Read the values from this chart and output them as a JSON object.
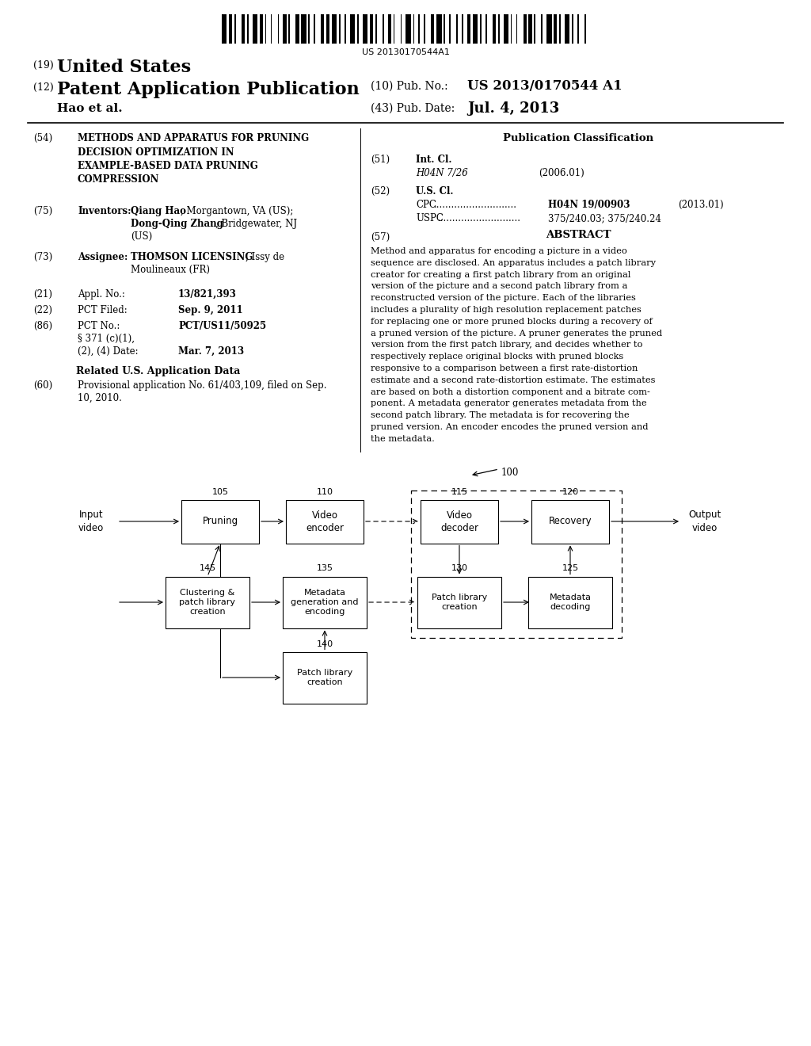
{
  "bg_color": "#ffffff",
  "barcode_text": "US 20130170544A1",
  "title_19": "(19)",
  "title_us": "United States",
  "title_12": "(12)",
  "title_pat": "Patent Application Publication",
  "title_10": "(10) Pub. No.:",
  "pub_no": "US 2013/0170544 A1",
  "authors": "Hao et al.",
  "title_43": "(43) Pub. Date:",
  "pub_date": "Jul. 4, 2013",
  "field54_label": "(54)",
  "field54_title": "METHODS AND APPARATUS FOR PRUNING\nDECISION OPTIMIZATION IN\nEXAMPLE-BASED DATA PRUNING\nCOMPRESSION",
  "field75_label": "(75)",
  "field75_title": "Inventors:",
  "field75_text": "Qiang Hao, Morgantown, VA (US);\nDong-Qing Zhang, Bridgewater, NJ\n(US)",
  "field73_label": "(73)",
  "field73_title": "Assignee:",
  "field73_text": "THOMSON LICENSING, Issy de\nMoulineaux (FR)",
  "field21_label": "(21)",
  "field21_title": "Appl. No.:",
  "field21_text": "13/821,393",
  "field22_label": "(22)",
  "field22_title": "PCT Filed:",
  "field22_text": "Sep. 9, 2011",
  "field86_label": "(86)",
  "field86_title": "PCT No.:",
  "field86_text": "PCT/US11/50925",
  "field86b_text": "§ 371 (c)(1),\n(2), (4) Date:",
  "field86b_date": "Mar. 7, 2013",
  "related_title": "Related U.S. Application Data",
  "field60_label": "(60)",
  "field60_text": "Provisional application No. 61/403,109, filed on Sep.\n10, 2010.",
  "pub_class_title": "Publication Classification",
  "field51_label": "(51)",
  "field51_title": "Int. Cl.",
  "field51_text": "H04N 7/26",
  "field51_year": "(2006.01)",
  "field52_label": "(52)",
  "field52_title": "U.S. Cl.",
  "field52_cpc_label": "CPC",
  "field52_cpc_dots": " ............................",
  "field52_cpc_text": "H04N 19/00903",
  "field52_cpc_year": "(2013.01)",
  "field52_uspc_label": "USPC",
  "field52_uspc_dots": " ............................",
  "field52_uspc_text": "375/240.03; 375/240.24",
  "field57_label": "(57)",
  "abstract_title": "ABSTRACT",
  "abstract_text": "Method and apparatus for encoding a picture in a video\nsequence are disclosed. An apparatus includes a patch library\ncreator for creating a first patch library from an original\nversion of the picture and a second patch library from a\nreconstructed version of the picture. Each of the libraries\nincludes a plurality of high resolution replacement patches\nfor replacing one or more pruned blocks during a recovery of\na pruned version of the picture. A pruner generates the pruned\nversion from the first patch library, and decides whether to\nrespectively replace original blocks with pruned blocks\nresponsive to a comparison between a first rate-distortion\nestimate and a second rate-distortion estimate. The estimates\nare based on both a distortion component and a bitrate com-\nponent. A metadata generator generates metadata from the\nsecond patch library. The metadata is for recovering the\npruned version. An encoder encodes the pruned version and\nthe metadata.",
  "diagram_label": "100"
}
